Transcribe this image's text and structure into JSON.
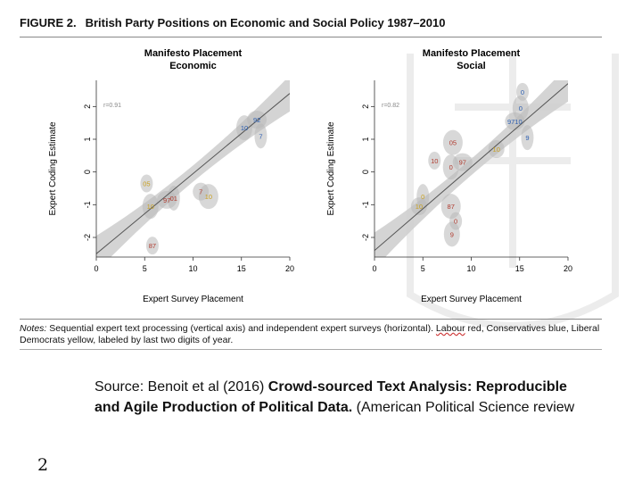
{
  "figure": {
    "label": "FIGURE 2.",
    "title": "British Party Positions on Economic and Social Policy 1987–2010"
  },
  "notes": {
    "prefix": "Notes:",
    "text_before": " Sequential expert text processing (vertical axis) and independent expert surveys (horizontal). ",
    "labour_word": "Labour",
    "text_after": " red, Conservatives blue, Liberal Democrats yellow, labeled by last two digits of year."
  },
  "source": {
    "prefix": "Source: Benoit et al (2016) ",
    "bold": "Crowd-sourced Text Analysis: Reproducible and Agile Production of Political Data.",
    "suffix": " (American Political Science review"
  },
  "slide_number": "2",
  "colors": {
    "labour": "#b03a2e",
    "conservative": "#2a5db0",
    "libdem": "#c8a020",
    "band": "#cfcfcf",
    "ellipse": "#b8b8b8"
  },
  "chart_data": [
    {
      "type": "scatter",
      "title": "Manifesto Placement",
      "subtitle": "Economic",
      "xlabel": "Expert Survey Placement",
      "ylabel": "Expert Coding Estimate",
      "xlim": [
        0,
        20
      ],
      "ylim": [
        -2.6,
        2.8
      ],
      "xticks": [
        "0",
        "5",
        "10",
        "15",
        "20"
      ],
      "yticks": [
        "-2",
        "-1",
        "0",
        "1",
        "2"
      ],
      "annotation": "r=0.91",
      "fit": {
        "x": [
          0,
          20
        ],
        "y": [
          -2.5,
          2.4
        ]
      },
      "points": [
        {
          "label": "05",
          "party": "libdem",
          "x": 5.2,
          "y": -0.35
        },
        {
          "label": "10",
          "party": "libdem",
          "x": 5.6,
          "y": -1.05
        },
        {
          "label": "97",
          "party": "labour",
          "x": 7.3,
          "y": -0.85
        },
        {
          "label": "01",
          "party": "labour",
          "x": 8.0,
          "y": -0.8
        },
        {
          "label": "7",
          "party": "labour",
          "x": 10.8,
          "y": -0.6
        },
        {
          "label": "10",
          "party": "libdem",
          "x": 11.6,
          "y": -0.75
        },
        {
          "label": "87",
          "party": "labour",
          "x": 5.8,
          "y": -2.25
        },
        {
          "label": "10",
          "party": "conservative",
          "x": 15.3,
          "y": 1.35
        },
        {
          "label": "92",
          "party": "conservative",
          "x": 16.6,
          "y": 1.6
        },
        {
          "label": "7",
          "party": "conservative",
          "x": 17.0,
          "y": 1.1
        }
      ]
    },
    {
      "type": "scatter",
      "title": "Manifesto Placement",
      "subtitle": "Social",
      "xlabel": "Expert Survey Placement",
      "ylabel": "Expert Coding Estimate",
      "xlim": [
        0,
        20
      ],
      "ylim": [
        -2.6,
        2.8
      ],
      "xticks": [
        "0",
        "5",
        "10",
        "15",
        "20"
      ],
      "yticks": [
        "-2",
        "-1",
        "0",
        "1",
        "2"
      ],
      "annotation": "r=0.82",
      "fit": {
        "x": [
          0,
          20
        ],
        "y": [
          -2.4,
          2.7
        ]
      },
      "points": [
        {
          "label": "0",
          "party": "conservative",
          "x": 15.3,
          "y": 2.45
        },
        {
          "label": "0",
          "party": "conservative",
          "x": 15.1,
          "y": 1.95
        },
        {
          "label": "9710",
          "party": "conservative",
          "x": 14.5,
          "y": 1.55
        },
        {
          "label": "9",
          "party": "conservative",
          "x": 15.8,
          "y": 1.05
        },
        {
          "label": "10",
          "party": "libdem",
          "x": 12.6,
          "y": 0.7
        },
        {
          "label": "05",
          "party": "labour",
          "x": 8.1,
          "y": 0.9
        },
        {
          "label": "10",
          "party": "labour",
          "x": 6.2,
          "y": 0.35
        },
        {
          "label": "0",
          "party": "labour",
          "x": 7.9,
          "y": 0.15
        },
        {
          "label": "97",
          "party": "labour",
          "x": 9.1,
          "y": 0.3
        },
        {
          "label": "0",
          "party": "libdem",
          "x": 5.0,
          "y": -0.75
        },
        {
          "label": "10",
          "party": "libdem",
          "x": 4.6,
          "y": -1.05
        },
        {
          "label": "87",
          "party": "labour",
          "x": 7.9,
          "y": -1.05
        },
        {
          "label": "0",
          "party": "labour",
          "x": 8.4,
          "y": -1.5
        },
        {
          "label": "9",
          "party": "labour",
          "x": 8.0,
          "y": -1.9
        }
      ]
    }
  ]
}
